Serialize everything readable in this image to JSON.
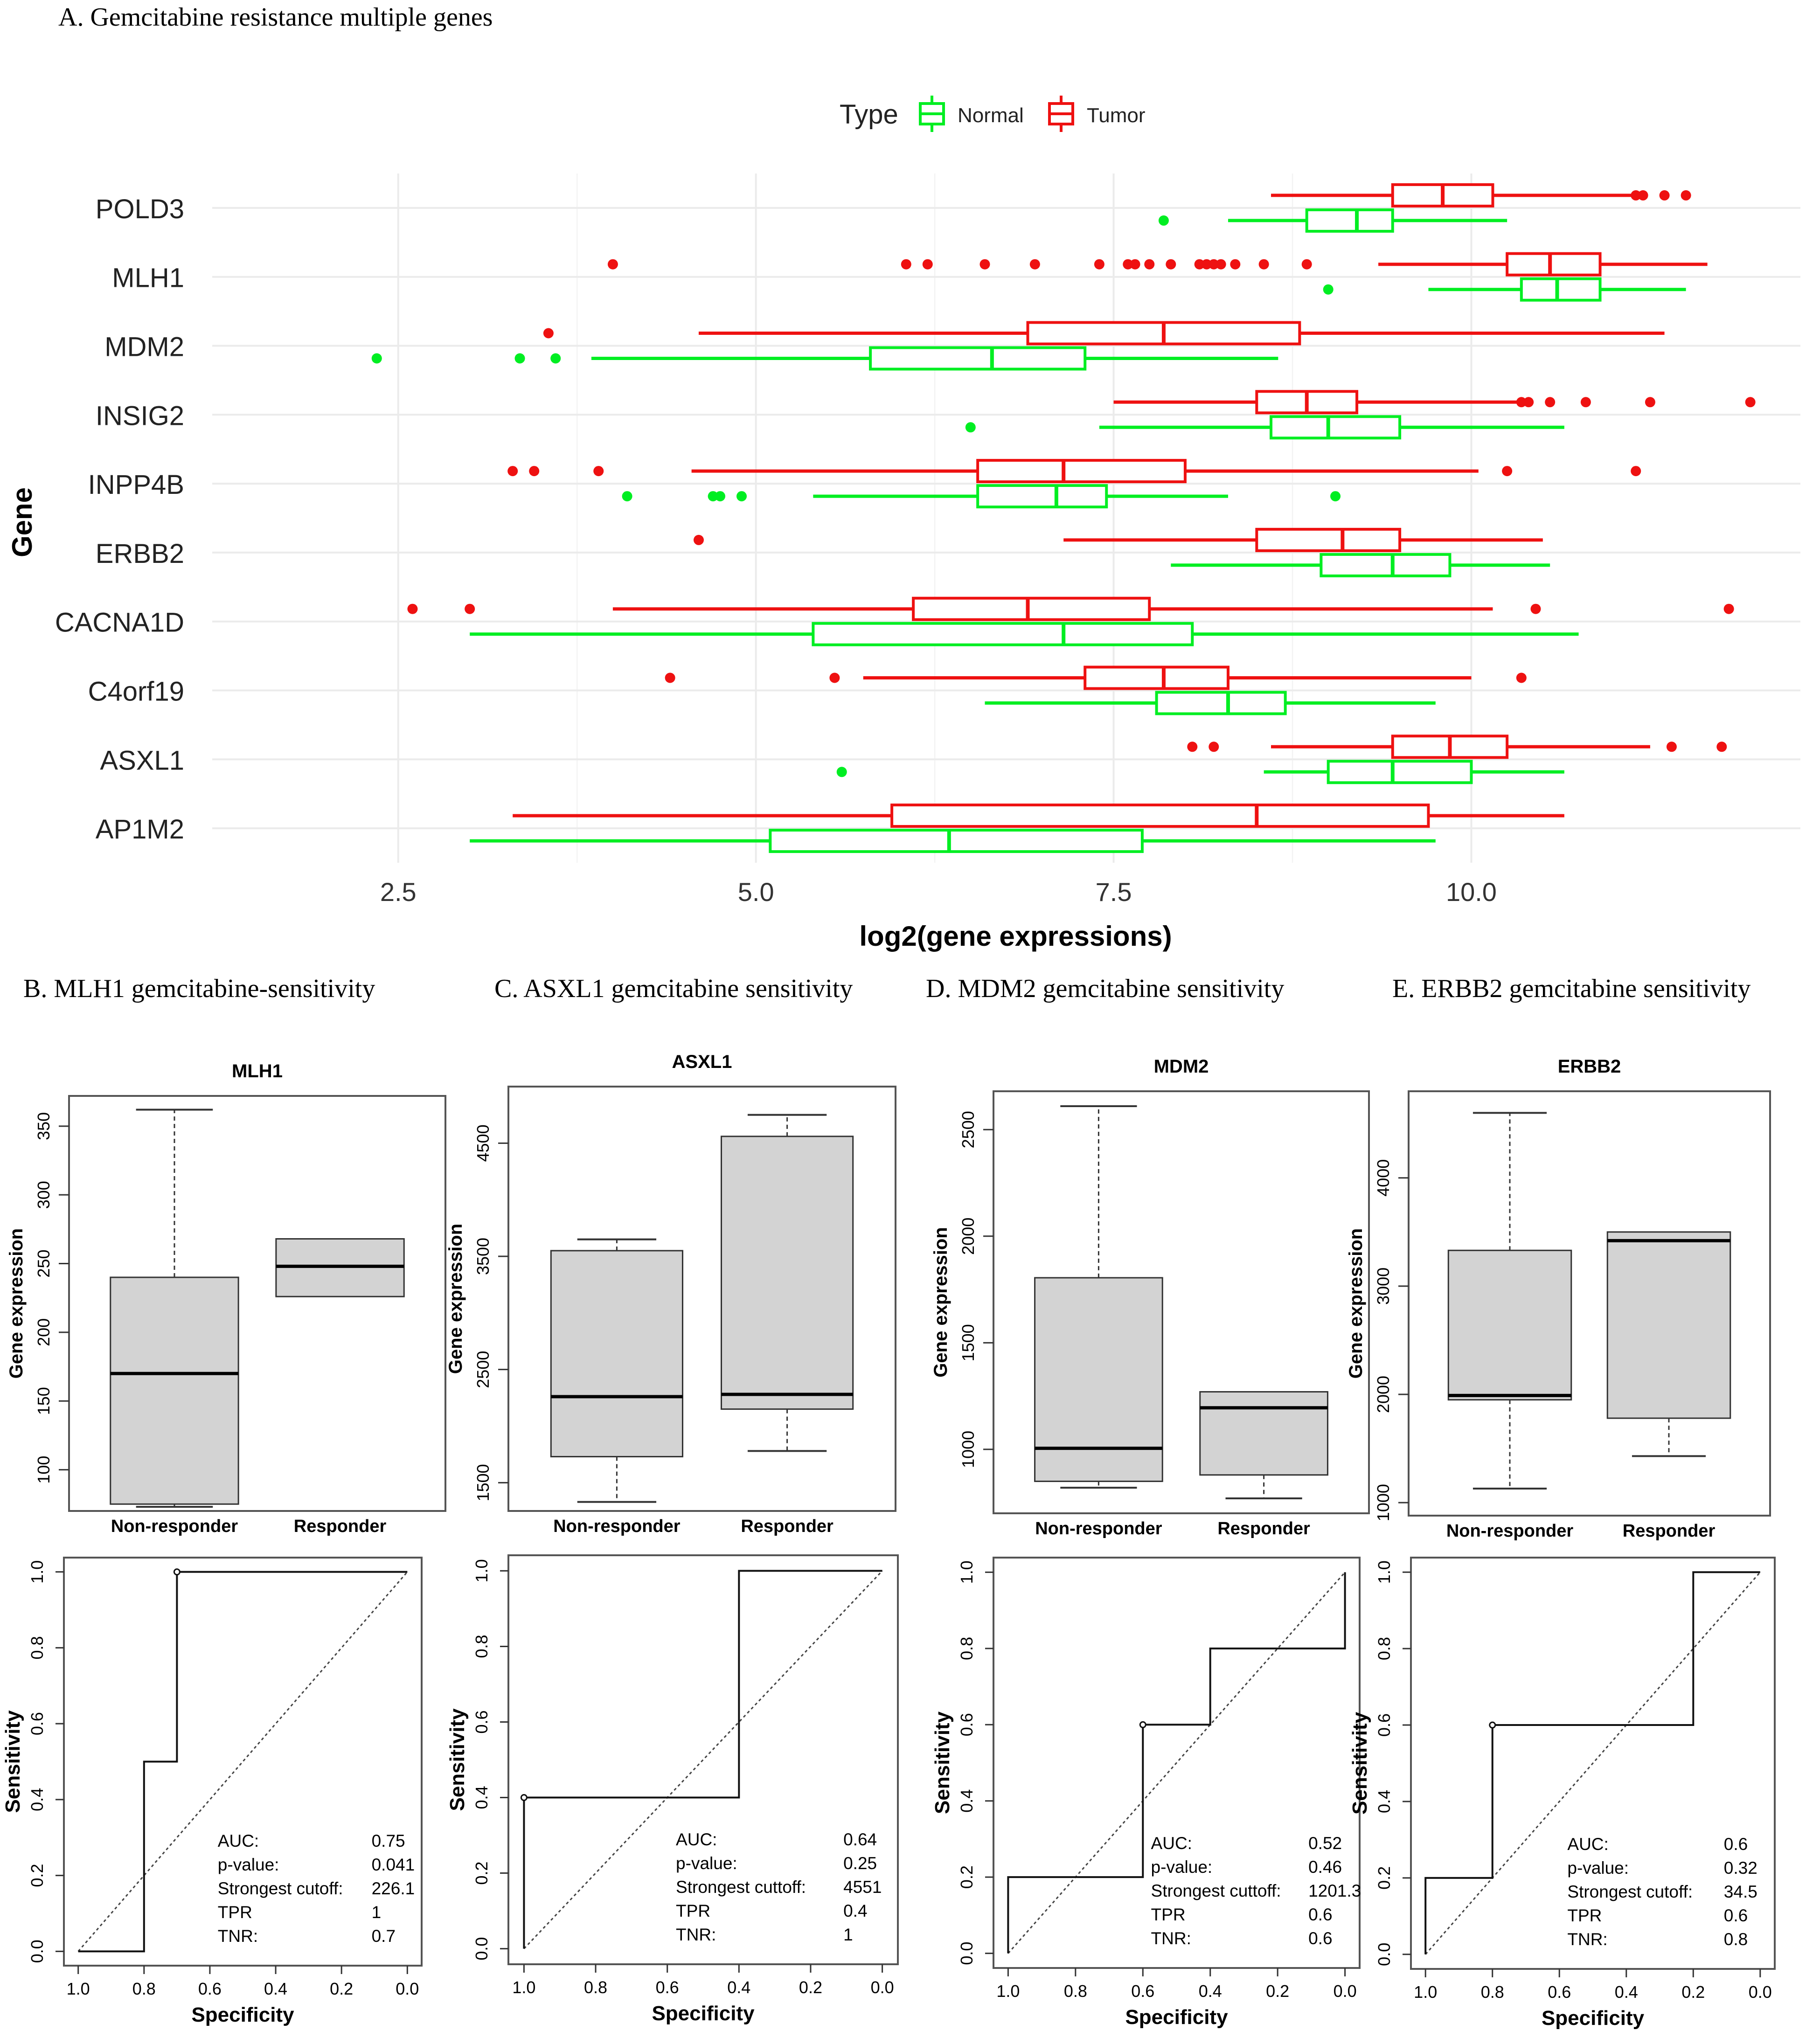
{
  "panel_a": {
    "heading": "A. Gemcitabine resistance multiple genes"
  },
  "colors": {
    "normal": "#00ee22",
    "tumor": "#ee1111",
    "box_fill": "#d3d3d3",
    "grid": "#ebebeb"
  },
  "chart_data": [
    {
      "type": "boxplot",
      "orientation": "horizontal",
      "title": "",
      "xlabel": "log2(gene expressions)",
      "ylabel": "Gene",
      "xlim": [
        1.2,
        12.3
      ],
      "xticks": [
        2.5,
        5.0,
        7.5,
        10.0
      ],
      "xtick_labels": [
        "2.5",
        "5.0",
        "7.5",
        "10.0"
      ],
      "grid": true,
      "legend": {
        "title": "Type",
        "position": "top",
        "entries": [
          "Normal",
          "Tumor"
        ]
      },
      "categories": [
        "POLD3",
        "MLH1",
        "MDM2",
        "INSIG2",
        "INPP4B",
        "ERBB2",
        "CACNA1D",
        "C4orf19",
        "ASXL1",
        "AP1M2"
      ],
      "series": [
        {
          "name": "Tumor",
          "boxes": [
            {
              "gene": "POLD3",
              "min": 8.6,
              "q1": 9.45,
              "median": 9.8,
              "q3": 10.15,
              "max": 11.2,
              "outliers": [
                11.15,
                11.2,
                11.35,
                11.5
              ]
            },
            {
              "gene": "MLH1",
              "min": 9.35,
              "q1": 10.25,
              "median": 10.55,
              "q3": 10.9,
              "max": 11.65,
              "outliers": [
                4.0,
                6.05,
                6.2,
                6.6,
                6.95,
                7.4,
                7.6,
                7.65,
                7.75,
                7.9,
                8.1,
                8.15,
                8.2,
                8.25,
                8.35,
                8.55,
                8.85
              ]
            },
            {
              "gene": "MDM2",
              "min": 4.6,
              "q1": 6.9,
              "median": 7.85,
              "q3": 8.8,
              "max": 11.35,
              "outliers": [
                3.55
              ]
            },
            {
              "gene": "INSIG2",
              "min": 7.5,
              "q1": 8.5,
              "median": 8.85,
              "q3": 9.2,
              "max": 10.35,
              "outliers": [
                10.35,
                10.4,
                10.55,
                10.8,
                11.25,
                11.95
              ]
            },
            {
              "gene": "INPP4B",
              "min": 4.55,
              "q1": 6.55,
              "median": 7.15,
              "q3": 8.0,
              "max": 10.05,
              "outliers": [
                3.3,
                3.45,
                3.9,
                10.25,
                11.15
              ]
            },
            {
              "gene": "ERBB2",
              "min": 7.15,
              "q1": 8.5,
              "median": 9.1,
              "q3": 9.5,
              "max": 10.5,
              "outliers": [
                4.6
              ]
            },
            {
              "gene": "CACNA1D",
              "min": 4.0,
              "q1": 6.1,
              "median": 6.9,
              "q3": 7.75,
              "max": 10.15,
              "outliers": [
                2.6,
                3.0,
                10.45,
                11.8
              ]
            },
            {
              "gene": "C4orf19",
              "min": 5.75,
              "q1": 7.3,
              "median": 7.85,
              "q3": 8.3,
              "max": 10.0,
              "outliers": [
                4.4,
                5.55,
                10.35
              ]
            },
            {
              "gene": "ASXL1",
              "min": 8.6,
              "q1": 9.45,
              "median": 9.85,
              "q3": 10.25,
              "max": 11.25,
              "outliers": [
                8.05,
                8.2,
                11.4,
                11.75
              ]
            },
            {
              "gene": "AP1M2",
              "min": 3.3,
              "q1": 5.95,
              "median": 8.5,
              "q3": 9.7,
              "max": 10.65,
              "outliers": []
            }
          ]
        },
        {
          "name": "Normal",
          "boxes": [
            {
              "gene": "POLD3",
              "min": 8.3,
              "q1": 8.85,
              "median": 9.2,
              "q3": 9.45,
              "max": 10.25,
              "outliers": [
                7.85
              ]
            },
            {
              "gene": "MLH1",
              "min": 9.7,
              "q1": 10.35,
              "median": 10.6,
              "q3": 10.9,
              "max": 11.5,
              "outliers": [
                9.0
              ]
            },
            {
              "gene": "MDM2",
              "min": 3.85,
              "q1": 5.8,
              "median": 6.65,
              "q3": 7.3,
              "max": 8.65,
              "outliers": [
                2.35,
                3.35,
                3.6
              ]
            },
            {
              "gene": "INSIG2",
              "min": 7.4,
              "q1": 8.6,
              "median": 9.0,
              "q3": 9.5,
              "max": 10.65,
              "outliers": [
                6.5
              ]
            },
            {
              "gene": "INPP4B",
              "min": 5.4,
              "q1": 6.55,
              "median": 7.1,
              "q3": 7.45,
              "max": 8.3,
              "outliers": [
                4.1,
                4.7,
                4.75,
                4.9,
                9.05
              ]
            },
            {
              "gene": "ERBB2",
              "min": 7.9,
              "q1": 8.95,
              "median": 9.45,
              "q3": 9.85,
              "max": 10.55,
              "outliers": []
            },
            {
              "gene": "CACNA1D",
              "min": 3.0,
              "q1": 5.4,
              "median": 7.15,
              "q3": 8.05,
              "max": 10.75,
              "outliers": []
            },
            {
              "gene": "C4orf19",
              "min": 6.6,
              "q1": 7.8,
              "median": 8.3,
              "q3": 8.7,
              "max": 9.75,
              "outliers": []
            },
            {
              "gene": "ASXL1",
              "min": 8.55,
              "q1": 9.0,
              "median": 9.45,
              "q3": 10.0,
              "max": 10.65,
              "outliers": [
                5.6
              ]
            },
            {
              "gene": "AP1M2",
              "min": 3.0,
              "q1": 5.1,
              "median": 6.35,
              "q3": 7.7,
              "max": 9.75,
              "outliers": []
            }
          ]
        }
      ]
    },
    {
      "type": "boxplot",
      "panel_heading": "B. MLH1 gemcitabine-sensitivity",
      "title": "MLH1",
      "ylabel": "Gene expression",
      "ylim": [
        70,
        372
      ],
      "yticks": [
        100,
        150,
        200,
        250,
        300,
        350
      ],
      "categories": [
        "Non-responder",
        "Responder"
      ],
      "boxes": [
        {
          "whisker_low": 73,
          "q1": 75,
          "median": 170,
          "q3": 240,
          "whisker_high": 362
        },
        {
          "whisker_low": 226,
          "q1": 226,
          "median": 248,
          "q3": 268,
          "whisker_high": 268
        }
      ]
    },
    {
      "type": "boxplot",
      "panel_heading": "C. ASXL1 gemcitabine sensitivity",
      "title": "ASXL1",
      "ylabel": "Gene expression",
      "ylim": [
        1250,
        5000
      ],
      "yticks": [
        1500,
        2500,
        3500,
        4500
      ],
      "categories": [
        "Non-responder",
        "Responder"
      ],
      "boxes": [
        {
          "whisker_low": 1330,
          "q1": 1730,
          "median": 2260,
          "q3": 3550,
          "whisker_high": 3650
        },
        {
          "whisker_low": 1780,
          "q1": 2150,
          "median": 2280,
          "q3": 4560,
          "whisker_high": 4750
        }
      ]
    },
    {
      "type": "boxplot",
      "panel_heading": "D. MDM2 gemcitabine sensitivity",
      "title": "MDM2",
      "ylabel": "Gene expression",
      "ylim": [
        700,
        2680
      ],
      "yticks": [
        1000,
        1500,
        2000,
        2500
      ],
      "categories": [
        "Non-responder",
        "Responder"
      ],
      "boxes": [
        {
          "whisker_low": 820,
          "q1": 850,
          "median": 1005,
          "q3": 1805,
          "whisker_high": 2610
        },
        {
          "whisker_low": 770,
          "q1": 880,
          "median": 1195,
          "q3": 1270,
          "whisker_high": 1270
        }
      ]
    },
    {
      "type": "boxplot",
      "panel_heading": "E. ERBB2 gemcitabine sensitivity",
      "title": "ERBB2",
      "ylabel": "Gene expression",
      "ylim": [
        880,
        4800
      ],
      "yticks": [
        1000,
        2000,
        3000,
        4000
      ],
      "categories": [
        "Non-responder",
        "Responder"
      ],
      "boxes": [
        {
          "whisker_low": 1130,
          "q1": 1950,
          "median": 1990,
          "q3": 3330,
          "whisker_high": 4600
        },
        {
          "whisker_low": 1430,
          "q1": 1780,
          "median": 3420,
          "q3": 3500,
          "whisker_high": 3500
        }
      ]
    },
    {
      "type": "line",
      "subtype": "roc",
      "gene": "MLH1",
      "xlabel": "Specificity",
      "ylabel": "Sensitivity",
      "xlim": [
        1.0,
        0.0
      ],
      "ylim": [
        0.0,
        1.0
      ],
      "xticks": [
        "1.0",
        "0.8",
        "0.6",
        "0.4",
        "0.2",
        "0.0"
      ],
      "yticks": [
        "0.0",
        "0.2",
        "0.4",
        "0.6",
        "0.8",
        "1.0"
      ],
      "curve": [
        [
          1.0,
          0.0
        ],
        [
          0.8,
          0.0
        ],
        [
          0.8,
          0.5
        ],
        [
          0.7,
          0.5
        ],
        [
          0.7,
          1.0
        ],
        [
          0.0,
          1.0
        ]
      ],
      "cutoff_point": [
        0.7,
        1.0
      ],
      "stats": {
        "labels": [
          "AUC:",
          "p-value:",
          "Strongest cutoff:",
          "TPR",
          "TNR:"
        ],
        "values": [
          "0.75",
          "0.041",
          "226.1",
          "1",
          "0.7"
        ]
      }
    },
    {
      "type": "line",
      "subtype": "roc",
      "gene": "ASXL1",
      "xlabel": "Specificity",
      "ylabel": "Sensitivity",
      "xlim": [
        1.0,
        0.0
      ],
      "ylim": [
        0.0,
        1.0
      ],
      "xticks": [
        "1.0",
        "0.8",
        "0.6",
        "0.4",
        "0.2",
        "0.0"
      ],
      "yticks": [
        "0.0",
        "0.2",
        "0.4",
        "0.6",
        "0.8",
        "1.0"
      ],
      "curve": [
        [
          1.0,
          0.0
        ],
        [
          1.0,
          0.4
        ],
        [
          0.4,
          0.4
        ],
        [
          0.4,
          1.0
        ],
        [
          0.0,
          1.0
        ]
      ],
      "cutoff_point": [
        1.0,
        0.4
      ],
      "stats": {
        "labels": [
          "AUC:",
          "p-value:",
          "Strongest cuttoff:",
          "TPR",
          "TNR:"
        ],
        "values": [
          "0.64",
          "0.25",
          "4551",
          "0.4",
          "1"
        ]
      }
    },
    {
      "type": "line",
      "subtype": "roc",
      "gene": "MDM2",
      "xlabel": "Specificity",
      "ylabel": "Sensitivity",
      "xlim": [
        1.0,
        0.0
      ],
      "ylim": [
        0.0,
        1.0
      ],
      "xticks": [
        "1.0",
        "0.8",
        "0.6",
        "0.4",
        "0.2",
        "0.0"
      ],
      "yticks": [
        "0.0",
        "0.2",
        "0.4",
        "0.6",
        "0.8",
        "1.0"
      ],
      "curve": [
        [
          1.0,
          0.0
        ],
        [
          1.0,
          0.2
        ],
        [
          0.6,
          0.2
        ],
        [
          0.6,
          0.6
        ],
        [
          0.4,
          0.6
        ],
        [
          0.4,
          0.8
        ],
        [
          0.0,
          0.8
        ],
        [
          0.0,
          1.0
        ]
      ],
      "cutoff_point": [
        0.6,
        0.6
      ],
      "stats": {
        "labels": [
          "AUC:",
          "p-value:",
          "Strongest cuttoff:",
          "TPR",
          "TNR:"
        ],
        "values": [
          "0.52",
          "0.46",
          "1201.3",
          "0.6",
          "0.6"
        ]
      }
    },
    {
      "type": "line",
      "subtype": "roc",
      "gene": "ERBB2",
      "xlabel": "Specificity",
      "ylabel": "Sensitivity",
      "xlim": [
        1.0,
        0.0
      ],
      "ylim": [
        0.0,
        1.0
      ],
      "xticks": [
        "1.0",
        "0.8",
        "0.6",
        "0.4",
        "0.2",
        "0.0"
      ],
      "yticks": [
        "0.0",
        "0.2",
        "0.4",
        "0.6",
        "0.8",
        "1.0"
      ],
      "curve": [
        [
          1.0,
          0.0
        ],
        [
          1.0,
          0.2
        ],
        [
          0.8,
          0.2
        ],
        [
          0.8,
          0.6
        ],
        [
          0.2,
          0.6
        ],
        [
          0.2,
          1.0
        ],
        [
          0.0,
          1.0
        ]
      ],
      "cutoff_point": [
        0.8,
        0.6
      ],
      "stats": {
        "labels": [
          "AUC:",
          "p-value:",
          "Strongest cutoff:",
          "TPR",
          "TNR:"
        ],
        "values": [
          "0.6",
          "0.32",
          "34.5",
          "0.6",
          "0.8"
        ]
      }
    }
  ]
}
